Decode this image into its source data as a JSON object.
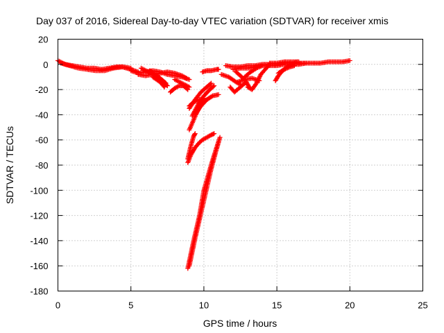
{
  "chart_data": {
    "type": "scatter",
    "title": "Day 037 of 2016, Sidereal Day-to-day VTEC variation (SDTVAR) for receiver xmis",
    "xlabel": "GPS time / hours",
    "ylabel": "SDTVAR / TECUs",
    "xlim": [
      0,
      25
    ],
    "ylim": [
      -180,
      20
    ],
    "xticks": [
      0,
      5,
      10,
      15,
      20,
      25
    ],
    "yticks": [
      20,
      0,
      -20,
      -40,
      -60,
      -80,
      -100,
      -120,
      -140,
      -160,
      -180
    ],
    "grid": true,
    "marker": "plus",
    "color": "#ff0000",
    "segments": [
      [
        [
          0.0,
          3
        ],
        [
          0.5,
          0
        ],
        [
          1.0,
          -1
        ],
        [
          1.5,
          -2
        ],
        [
          2.0,
          -3
        ],
        [
          2.5,
          -3
        ],
        [
          3.0,
          -4
        ],
        [
          3.5,
          -3
        ],
        [
          4.0,
          -2
        ],
        [
          4.5,
          -2
        ],
        [
          5.0,
          -3
        ]
      ],
      [
        [
          0.2,
          1
        ],
        [
          0.8,
          -1
        ],
        [
          1.4,
          -3
        ],
        [
          2.0,
          -4
        ],
        [
          2.6,
          -5
        ],
        [
          3.2,
          -5
        ],
        [
          3.8,
          -3
        ],
        [
          4.4,
          -2
        ],
        [
          5.0,
          -4
        ],
        [
          5.5,
          -6
        ]
      ],
      [
        [
          5.0,
          -5
        ],
        [
          5.5,
          -7
        ],
        [
          6.0,
          -6
        ],
        [
          6.5,
          -5
        ],
        [
          7.0,
          -6
        ],
        [
          7.5,
          -8
        ],
        [
          8.0,
          -9
        ],
        [
          8.5,
          -10
        ],
        [
          9.0,
          -12
        ]
      ],
      [
        [
          5.5,
          -8
        ],
        [
          6.0,
          -9
        ],
        [
          6.5,
          -8
        ],
        [
          7.0,
          -7
        ],
        [
          7.5,
          -6
        ],
        [
          8.0,
          -7
        ],
        [
          8.5,
          -9
        ],
        [
          8.8,
          -11
        ]
      ],
      [
        [
          5.7,
          -3
        ],
        [
          6.2,
          -6
        ],
        [
          6.7,
          -9
        ],
        [
          7.2,
          -14
        ],
        [
          7.5,
          -17
        ]
      ],
      [
        [
          6.3,
          -5
        ],
        [
          6.8,
          -9
        ],
        [
          7.1,
          -12
        ],
        [
          7.4,
          -15
        ]
      ],
      [
        [
          6.5,
          -10
        ],
        [
          7.0,
          -14
        ],
        [
          7.3,
          -18
        ]
      ],
      [
        [
          7.7,
          -22
        ],
        [
          8.0,
          -19
        ],
        [
          8.3,
          -17
        ],
        [
          8.6,
          -17
        ],
        [
          8.9,
          -20
        ]
      ],
      [
        [
          8.0,
          -12
        ],
        [
          8.5,
          -15
        ],
        [
          9.0,
          -18
        ]
      ],
      [
        [
          9.0,
          -33
        ],
        [
          9.3,
          -30
        ],
        [
          9.7,
          -28
        ],
        [
          10.0,
          -27
        ]
      ],
      [
        [
          9.4,
          -40
        ],
        [
          9.8,
          -33
        ],
        [
          10.2,
          -28
        ],
        [
          10.6,
          -25
        ],
        [
          11.0,
          -24
        ]
      ],
      [
        [
          9.2,
          -41
        ],
        [
          9.6,
          -32
        ],
        [
          10.0,
          -25
        ],
        [
          10.4,
          -20
        ],
        [
          10.7,
          -17
        ]
      ],
      [
        [
          9.0,
          -52
        ],
        [
          9.3,
          -44
        ],
        [
          9.6,
          -36
        ],
        [
          9.9,
          -30
        ],
        [
          10.2,
          -28
        ]
      ],
      [
        [
          9.0,
          -35
        ],
        [
          9.4,
          -28
        ],
        [
          9.8,
          -22
        ],
        [
          10.2,
          -18
        ],
        [
          10.5,
          -15
        ]
      ],
      [
        [
          9.9,
          -6
        ],
        [
          10.2,
          -5
        ],
        [
          10.5,
          -5
        ],
        [
          10.9,
          -4
        ],
        [
          11.0,
          -4
        ]
      ],
      [
        [
          8.9,
          -78
        ],
        [
          9.1,
          -72
        ],
        [
          9.4,
          -66
        ],
        [
          9.7,
          -62
        ],
        [
          9.9,
          -60
        ],
        [
          10.2,
          -58
        ],
        [
          10.5,
          -56
        ],
        [
          10.7,
          -55
        ]
      ],
      [
        [
          8.9,
          -75
        ],
        [
          9.0,
          -70
        ],
        [
          9.1,
          -65
        ],
        [
          9.2,
          -61
        ],
        [
          9.3,
          -57
        ],
        [
          9.4,
          -55
        ]
      ],
      [
        [
          8.9,
          -162
        ],
        [
          9.3,
          -140
        ],
        [
          9.7,
          -120
        ],
        [
          10.0,
          -100
        ],
        [
          10.3,
          -88
        ],
        [
          10.6,
          -76
        ],
        [
          10.9,
          -65
        ],
        [
          11.1,
          -58
        ]
      ],
      [
        [
          9.0,
          -160
        ],
        [
          9.4,
          -138
        ],
        [
          9.8,
          -118
        ],
        [
          10.2,
          -98
        ],
        [
          10.5,
          -83
        ],
        [
          10.8,
          -70
        ],
        [
          11.0,
          -62
        ]
      ],
      [
        [
          11.5,
          -1
        ],
        [
          12.0,
          -2
        ],
        [
          12.5,
          -2
        ],
        [
          13.0,
          -1
        ],
        [
          13.5,
          -1
        ],
        [
          14.0,
          0
        ],
        [
          14.5,
          0
        ],
        [
          15.0,
          0
        ],
        [
          15.5,
          1
        ],
        [
          16.0,
          1
        ],
        [
          16.5,
          1
        ],
        [
          17.0,
          1
        ],
        [
          17.5,
          1
        ],
        [
          18.0,
          1
        ],
        [
          18.5,
          2
        ],
        [
          19.0,
          2
        ],
        [
          19.5,
          2
        ],
        [
          20.0,
          3
        ]
      ],
      [
        [
          12.0,
          -4
        ],
        [
          12.5,
          -3
        ],
        [
          13.0,
          -3
        ],
        [
          13.5,
          -2
        ],
        [
          14.0,
          -1
        ],
        [
          14.5,
          -1
        ],
        [
          15.0,
          -1
        ],
        [
          15.5,
          0
        ],
        [
          16.0,
          0
        ],
        [
          16.5,
          0
        ],
        [
          17.0,
          1
        ]
      ],
      [
        [
          11.2,
          -8
        ],
        [
          11.7,
          -10
        ],
        [
          12.2,
          -14
        ],
        [
          12.5,
          -16
        ]
      ],
      [
        [
          12.2,
          -6
        ],
        [
          12.6,
          -10
        ],
        [
          12.9,
          -14
        ],
        [
          13.1,
          -18
        ]
      ],
      [
        [
          11.8,
          -18
        ],
        [
          12.1,
          -22
        ],
        [
          12.5,
          -18
        ],
        [
          12.9,
          -14
        ]
      ],
      [
        [
          12.8,
          -10
        ],
        [
          13.2,
          -6
        ],
        [
          13.6,
          -3
        ],
        [
          14.0,
          -1
        ]
      ],
      [
        [
          13.0,
          -18
        ],
        [
          13.3,
          -20
        ],
        [
          13.6,
          -15
        ],
        [
          13.9,
          -8
        ],
        [
          14.2,
          -4
        ],
        [
          14.5,
          0
        ]
      ],
      [
        [
          12.3,
          -14
        ],
        [
          12.8,
          -12
        ],
        [
          13.3,
          -11
        ],
        [
          13.8,
          -13
        ]
      ],
      [
        [
          14.9,
          -13
        ],
        [
          15.1,
          -9
        ],
        [
          15.4,
          -5
        ],
        [
          15.7,
          -2
        ],
        [
          16.0,
          0
        ],
        [
          16.4,
          2
        ]
      ],
      [
        [
          15.1,
          -7
        ],
        [
          15.5,
          -4
        ],
        [
          15.9,
          -2
        ],
        [
          16.2,
          -1
        ]
      ],
      [
        [
          14.5,
          1
        ],
        [
          15.0,
          1
        ],
        [
          15.5,
          2
        ],
        [
          16.0,
          2
        ],
        [
          16.5,
          2
        ]
      ]
    ]
  }
}
